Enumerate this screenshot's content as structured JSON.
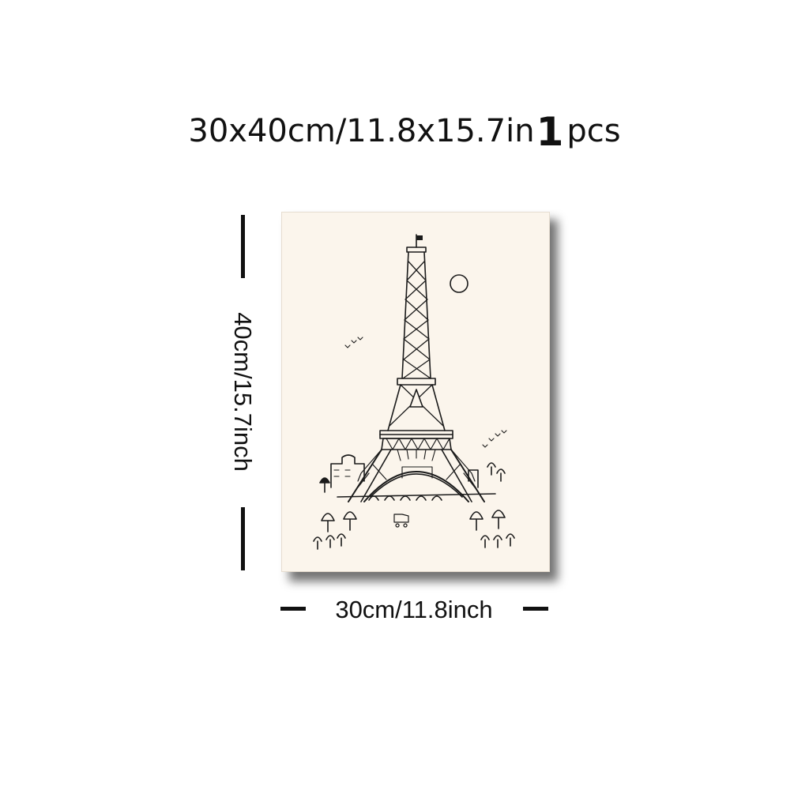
{
  "headline": {
    "size": "30x40cm/11.8x15.7in",
    "quantity": "1",
    "unit": "pcs"
  },
  "dimensions": {
    "width_label": "30cm/11.8inch",
    "height_label": "40cm/15.7inch"
  },
  "artwork": {
    "subject": "eiffel-tower-sketch",
    "background_color": "#fbf5ec",
    "ink_color": "#1a1a1a"
  }
}
